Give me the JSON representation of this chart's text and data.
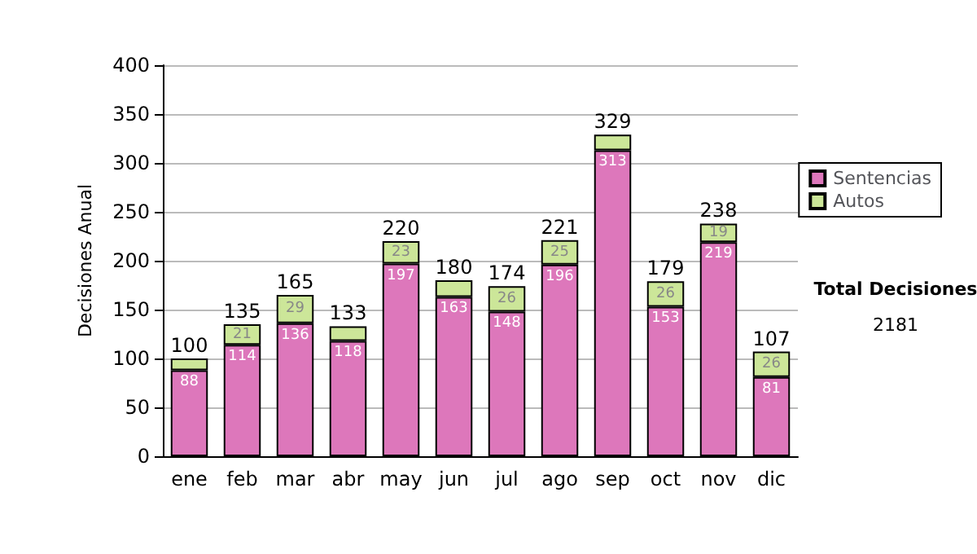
{
  "chart_data": {
    "type": "bar",
    "stacked": true,
    "ylabel": "Decisiones Anual",
    "categories": [
      "ene",
      "feb",
      "mar",
      "abr",
      "may",
      "jun",
      "jul",
      "ago",
      "sep",
      "oct",
      "nov",
      "dic"
    ],
    "series": [
      {
        "name": "Sentencias",
        "color": "#dd77bb",
        "values": [
          88,
          114,
          136,
          118,
          197,
          163,
          148,
          196,
          313,
          153,
          219,
          81
        ],
        "value_labels": [
          "88",
          "114",
          "136",
          "118",
          "197",
          "163",
          "148",
          "196",
          "313",
          "153",
          "219",
          "81"
        ]
      },
      {
        "name": "Autos",
        "color": "#cce699",
        "values": [
          12,
          21,
          29,
          15,
          23,
          17,
          26,
          25,
          16,
          26,
          19,
          26
        ],
        "value_labels": [
          null,
          "21",
          "29",
          null,
          "23",
          null,
          "26",
          "25",
          null,
          "26",
          "19",
          "26"
        ]
      }
    ],
    "totals": [
      "100",
      "135",
      "165",
      "133",
      "220",
      "180",
      "174",
      "221",
      "329",
      "179",
      "238",
      "107"
    ],
    "ylim": [
      0,
      400
    ],
    "yticks": [
      0,
      50,
      100,
      150,
      200,
      250,
      300,
      350,
      400
    ],
    "grid": "y",
    "legend": "right",
    "annotations": [
      "Total Decisiones",
      "2181"
    ]
  }
}
